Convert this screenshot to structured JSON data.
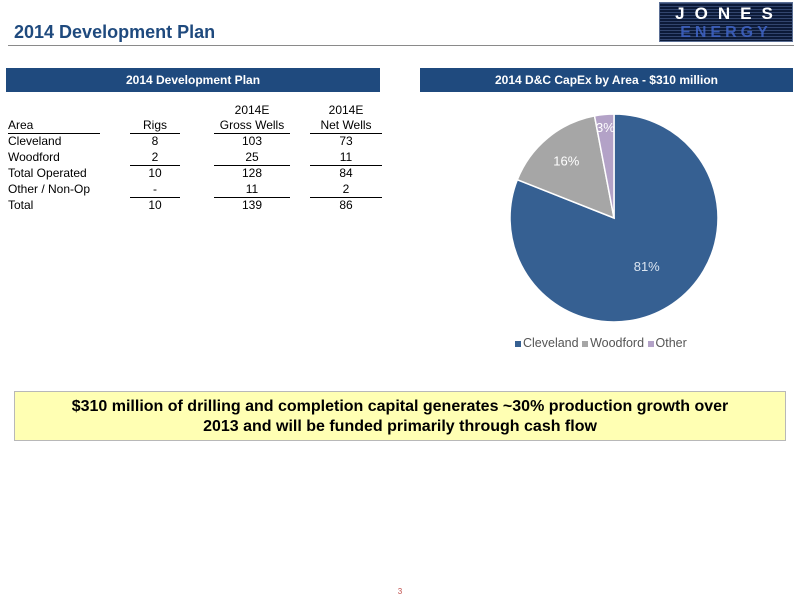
{
  "header": {
    "title": "2014 Development Plan",
    "logo_text": "JONES",
    "logo_sub": "ENERGY"
  },
  "left_panel": {
    "title": "2014 Development Plan",
    "table": {
      "headers": [
        {
          "line1": "",
          "line2": "Area"
        },
        {
          "line1": "",
          "line2": "Rigs"
        },
        {
          "line1": "2014E",
          "line2": "Gross Wells"
        },
        {
          "line1": "2014E",
          "line2": "Net Wells"
        }
      ],
      "rows": [
        {
          "area": "Cleveland",
          "rigs": "8",
          "gross": "103",
          "net": "73"
        },
        {
          "area": "Woodford",
          "rigs": "2",
          "gross": "25",
          "net": "11"
        },
        {
          "area": "Total Operated",
          "rigs": "10",
          "gross": "128",
          "net": "84"
        },
        {
          "area": "Other / Non-Op",
          "rigs": "-",
          "gross": "11",
          "net": "2"
        },
        {
          "area": "Total",
          "rigs": "10",
          "gross": "139",
          "net": "86"
        }
      ]
    }
  },
  "right_panel": {
    "title": "2014 D&C CapEx by Area - $310 million"
  },
  "chart_data": {
    "type": "pie",
    "categories": [
      "Cleveland",
      "Woodford",
      "Other"
    ],
    "values": [
      81,
      16,
      3
    ],
    "data_labels": [
      "81%",
      "16%",
      "3%"
    ],
    "colors": [
      "#366092",
      "#a6a6a6",
      "#b3a2c7"
    ],
    "legend_position": "bottom"
  },
  "callout": {
    "line1": "$310 million of drilling and completion capital generates ~30% production growth over",
    "line2": "2013 and will be funded primarily through cash flow"
  },
  "footer": {
    "page_number": "3"
  }
}
